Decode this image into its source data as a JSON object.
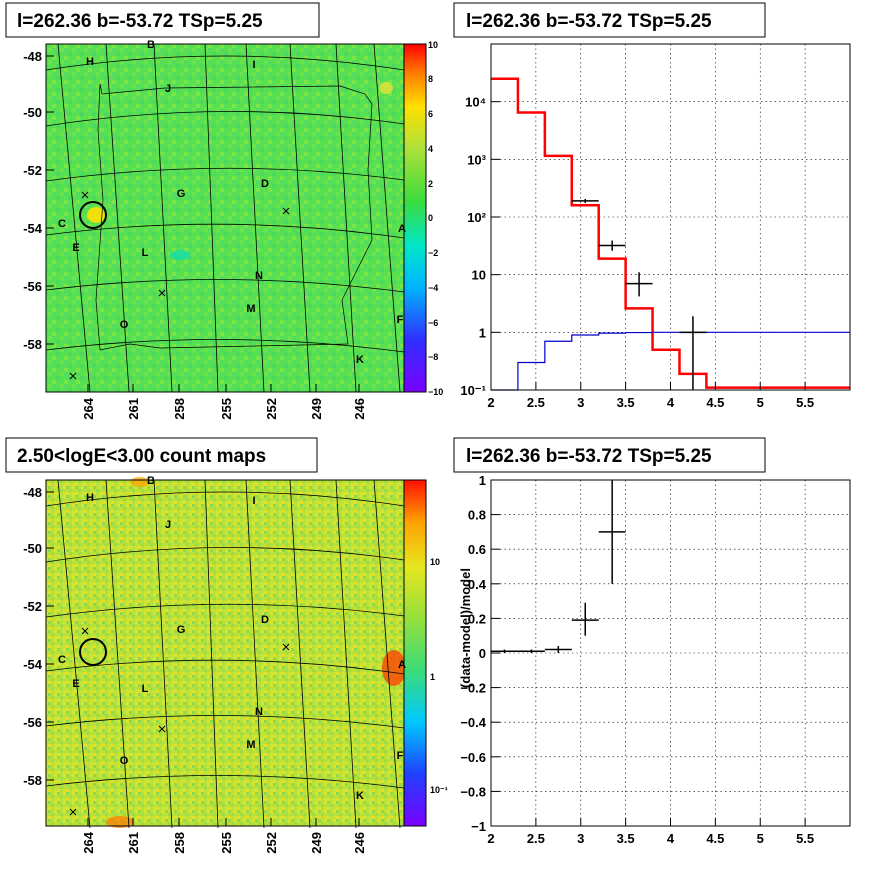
{
  "panels": {
    "top_left_title": "l=262.36 b=-53.72 TSp=5.25",
    "top_right_title": "l=262.36 b=-53.72 TSp=5.25",
    "bottom_left_title": "2.50<logE<3.00 count maps",
    "bottom_right_title": "l=262.36 b=-53.72 TSp=5.25"
  },
  "maps": {
    "lat_ticks": [
      "-48",
      "-50",
      "-52",
      "-54",
      "-56",
      "-58"
    ],
    "lon_ticks": [
      "264",
      "261",
      "258",
      "255",
      "252",
      "249",
      "246"
    ],
    "region_labels": [
      "H",
      "B",
      "I",
      "J",
      "G",
      "D",
      "C",
      "E",
      "L",
      "N",
      "M",
      "O",
      "F",
      "K",
      "A"
    ],
    "ts_colorbar_ticks": [
      "10",
      "8",
      "6",
      "4",
      "2",
      "0",
      "−2",
      "−4",
      "−6",
      "−8",
      "−10"
    ],
    "count_colorbar_ticks": [
      "10",
      "1"
    ],
    "count_colorbar_minor": "10⁻¹"
  },
  "chart_data": [
    {
      "type": "line",
      "panel": "top-right spectrum",
      "title": "l=262.36 b=-53.72 TSp=5.25",
      "xlabel": "",
      "ylabel": "",
      "xlim": [
        2,
        6
      ],
      "ylim": [
        0.1,
        100000
      ],
      "yscale": "log",
      "grid": true,
      "x_ticks": [
        "2",
        "2.5",
        "3",
        "3.5",
        "4",
        "4.5",
        "5",
        "5.5"
      ],
      "y_ticks": [
        "10⁻¹",
        "1",
        "10",
        "10²",
        "10³",
        "10⁴"
      ],
      "series": [
        {
          "color": "#ff0000",
          "style": "step",
          "edges": [
            2.0,
            2.3,
            2.6,
            2.9,
            3.2,
            3.5,
            3.8,
            4.1,
            4.4,
            6.0
          ],
          "values": [
            25000,
            6500,
            1150,
            160,
            19,
            2.6,
            0.5,
            0.19,
            0.11
          ]
        },
        {
          "color": "#0000cc",
          "style": "step",
          "edges": [
            2.0,
            2.3,
            2.6,
            2.9,
            3.2,
            3.5,
            3.8,
            4.1,
            4.4,
            6.0
          ],
          "values": [
            0.05,
            0.3,
            0.7,
            0.9,
            0.97,
            0.99,
            1.0,
            1.0,
            1.0
          ]
        },
        {
          "color": "#000000",
          "style": "points",
          "points": [
            {
              "x": 3.05,
              "y": 190,
              "xerr": 0.15,
              "ylo": 175,
              "yhi": 205
            },
            {
              "x": 3.35,
              "y": 32,
              "xerr": 0.15,
              "ylo": 26,
              "yhi": 39
            },
            {
              "x": 3.65,
              "y": 7,
              "xerr": 0.15,
              "ylo": 4.2,
              "yhi": 11
            },
            {
              "x": 4.25,
              "y": 1.0,
              "xerr": 0.15,
              "ylo": 0.1,
              "yhi": 1.9
            }
          ]
        }
      ]
    },
    {
      "type": "scatter",
      "panel": "bottom-right residuals",
      "title": "l=262.36 b=-53.72 TSp=5.25",
      "xlabel": "",
      "ylabel": "(data-model)/model",
      "xlim": [
        2,
        6
      ],
      "ylim": [
        -1,
        1
      ],
      "grid": true,
      "x_ticks": [
        "2",
        "2.5",
        "3",
        "3.5",
        "4",
        "4.5",
        "5",
        "5.5"
      ],
      "y_ticks": [
        "−1",
        "−0.8",
        "−0.6",
        "−0.4",
        "−0.2",
        "0",
        "0.2",
        "0.4",
        "0.6",
        "0.8",
        "1"
      ],
      "points": [
        {
          "x": 2.15,
          "y": 0.01,
          "xerr": 0.15,
          "ylo": 0.0,
          "yhi": 0.02
        },
        {
          "x": 2.45,
          "y": 0.01,
          "xerr": 0.15,
          "ylo": 0.0,
          "yhi": 0.02
        },
        {
          "x": 2.75,
          "y": 0.02,
          "xerr": 0.15,
          "ylo": 0.0,
          "yhi": 0.04
        },
        {
          "x": 3.05,
          "y": 0.19,
          "xerr": 0.15,
          "ylo": 0.1,
          "yhi": 0.29
        },
        {
          "x": 3.35,
          "y": 0.7,
          "xerr": 0.15,
          "ylo": 0.4,
          "yhi": 1.0
        }
      ]
    }
  ]
}
